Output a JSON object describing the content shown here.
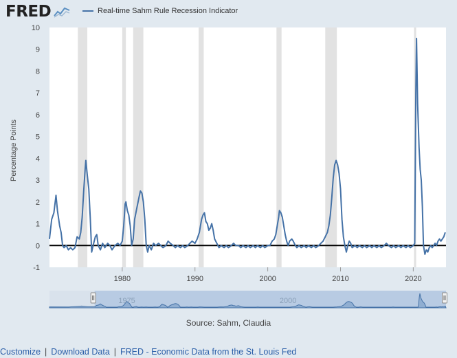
{
  "header": {
    "logo_text": "FRED",
    "logo_icon": "line-chart-icon"
  },
  "chart_data": {
    "type": "line",
    "title": "",
    "xlabel": "",
    "ylabel": "Percentage Points",
    "ylim": [
      -1,
      10
    ],
    "xlim": [
      1970.0,
      2024.5
    ],
    "yticks": [
      -1,
      0,
      1,
      2,
      3,
      4,
      5,
      6,
      7,
      8,
      9,
      10
    ],
    "xticks": [
      1980,
      1990,
      2000,
      2010,
      2020
    ],
    "grid": false,
    "legend": "top-left",
    "zero_line": true,
    "series": [
      {
        "name": "Real-time Sahm Rule Recession Indicator",
        "color": "#4572a7",
        "points": [
          [
            1970.0,
            0.3
          ],
          [
            1970.3,
            1.2
          ],
          [
            1970.6,
            1.5
          ],
          [
            1970.9,
            2.3
          ],
          [
            1971.1,
            1.6
          ],
          [
            1971.4,
            0.9
          ],
          [
            1971.6,
            0.6
          ],
          [
            1971.8,
            0.0
          ],
          [
            1972.0,
            -0.1
          ],
          [
            1972.3,
            0.0
          ],
          [
            1972.6,
            -0.2
          ],
          [
            1972.9,
            -0.1
          ],
          [
            1973.2,
            -0.2
          ],
          [
            1973.5,
            -0.1
          ],
          [
            1973.8,
            0.4
          ],
          [
            1974.1,
            0.3
          ],
          [
            1974.3,
            0.6
          ],
          [
            1974.5,
            1.3
          ],
          [
            1974.7,
            2.5
          ],
          [
            1974.9,
            3.5
          ],
          [
            1975.0,
            3.9
          ],
          [
            1975.2,
            3.2
          ],
          [
            1975.4,
            2.6
          ],
          [
            1975.6,
            1.3
          ],
          [
            1975.8,
            -0.3
          ],
          [
            1976.0,
            0.0
          ],
          [
            1976.3,
            0.4
          ],
          [
            1976.5,
            0.5
          ],
          [
            1976.7,
            0.0
          ],
          [
            1977.0,
            -0.2
          ],
          [
            1977.3,
            0.1
          ],
          [
            1977.6,
            -0.1
          ],
          [
            1978.0,
            0.1
          ],
          [
            1978.3,
            0.0
          ],
          [
            1978.6,
            -0.2
          ],
          [
            1979.0,
            0.0
          ],
          [
            1979.4,
            0.1
          ],
          [
            1979.7,
            0.0
          ],
          [
            1980.0,
            0.2
          ],
          [
            1980.2,
            0.9
          ],
          [
            1980.4,
            1.9
          ],
          [
            1980.5,
            2.0
          ],
          [
            1980.7,
            1.6
          ],
          [
            1980.9,
            1.4
          ],
          [
            1981.1,
            0.9
          ],
          [
            1981.3,
            0.0
          ],
          [
            1981.5,
            0.3
          ],
          [
            1981.7,
            1.2
          ],
          [
            1982.0,
            1.7
          ],
          [
            1982.3,
            2.2
          ],
          [
            1982.5,
            2.5
          ],
          [
            1982.7,
            2.4
          ],
          [
            1982.9,
            2.0
          ],
          [
            1983.1,
            1.2
          ],
          [
            1983.3,
            0.0
          ],
          [
            1983.5,
            -0.3
          ],
          [
            1983.7,
            0.0
          ],
          [
            1984.0,
            -0.2
          ],
          [
            1984.3,
            0.1
          ],
          [
            1984.6,
            0.0
          ],
          [
            1985.0,
            0.1
          ],
          [
            1985.3,
            0.0
          ],
          [
            1985.6,
            -0.1
          ],
          [
            1986.0,
            0.0
          ],
          [
            1986.3,
            0.2
          ],
          [
            1986.6,
            0.1
          ],
          [
            1987.0,
            0.0
          ],
          [
            1987.3,
            -0.1
          ],
          [
            1987.6,
            0.0
          ],
          [
            1988.0,
            -0.1
          ],
          [
            1988.3,
            0.0
          ],
          [
            1988.6,
            -0.1
          ],
          [
            1989.0,
            0.0
          ],
          [
            1989.3,
            0.1
          ],
          [
            1989.6,
            0.2
          ],
          [
            1990.0,
            0.1
          ],
          [
            1990.3,
            0.3
          ],
          [
            1990.6,
            0.6
          ],
          [
            1990.9,
            1.2
          ],
          [
            1991.1,
            1.4
          ],
          [
            1991.3,
            1.5
          ],
          [
            1991.5,
            1.1
          ],
          [
            1991.7,
            1.0
          ],
          [
            1991.9,
            0.7
          ],
          [
            1992.1,
            0.8
          ],
          [
            1992.3,
            1.0
          ],
          [
            1992.5,
            0.7
          ],
          [
            1992.7,
            0.3
          ],
          [
            1993.0,
            0.1
          ],
          [
            1993.3,
            -0.1
          ],
          [
            1993.6,
            0.0
          ],
          [
            1994.0,
            -0.1
          ],
          [
            1994.3,
            0.0
          ],
          [
            1994.6,
            -0.1
          ],
          [
            1995.0,
            0.0
          ],
          [
            1995.3,
            0.1
          ],
          [
            1995.6,
            0.0
          ],
          [
            1996.0,
            0.0
          ],
          [
            1996.3,
            -0.1
          ],
          [
            1996.6,
            0.0
          ],
          [
            1997.0,
            -0.1
          ],
          [
            1997.3,
            0.0
          ],
          [
            1997.6,
            -0.1
          ],
          [
            1998.0,
            0.0
          ],
          [
            1998.3,
            -0.1
          ],
          [
            1998.6,
            0.0
          ],
          [
            1999.0,
            -0.1
          ],
          [
            1999.3,
            0.0
          ],
          [
            1999.6,
            -0.1
          ],
          [
            2000.0,
            0.0
          ],
          [
            2000.3,
            0.0
          ],
          [
            2000.6,
            0.2
          ],
          [
            2000.9,
            0.3
          ],
          [
            2001.1,
            0.5
          ],
          [
            2001.3,
            0.9
          ],
          [
            2001.5,
            1.3
          ],
          [
            2001.6,
            1.6
          ],
          [
            2001.8,
            1.5
          ],
          [
            2002.0,
            1.3
          ],
          [
            2002.2,
            0.9
          ],
          [
            2002.4,
            0.5
          ],
          [
            2002.6,
            0.2
          ],
          [
            2002.8,
            0.0
          ],
          [
            2003.0,
            0.2
          ],
          [
            2003.3,
            0.3
          ],
          [
            2003.5,
            0.2
          ],
          [
            2003.8,
            0.0
          ],
          [
            2004.0,
            -0.1
          ],
          [
            2004.3,
            0.0
          ],
          [
            2004.6,
            -0.1
          ],
          [
            2005.0,
            0.0
          ],
          [
            2005.3,
            -0.1
          ],
          [
            2005.6,
            0.0
          ],
          [
            2006.0,
            -0.1
          ],
          [
            2006.3,
            0.0
          ],
          [
            2006.6,
            -0.1
          ],
          [
            2007.0,
            0.0
          ],
          [
            2007.3,
            0.1
          ],
          [
            2007.6,
            0.2
          ],
          [
            2007.9,
            0.4
          ],
          [
            2008.2,
            0.6
          ],
          [
            2008.4,
            0.9
          ],
          [
            2008.6,
            1.4
          ],
          [
            2008.8,
            2.2
          ],
          [
            2009.0,
            3.1
          ],
          [
            2009.2,
            3.7
          ],
          [
            2009.4,
            3.9
          ],
          [
            2009.6,
            3.7
          ],
          [
            2009.8,
            3.3
          ],
          [
            2010.0,
            2.6
          ],
          [
            2010.2,
            1.2
          ],
          [
            2010.4,
            0.4
          ],
          [
            2010.6,
            0.0
          ],
          [
            2010.8,
            -0.3
          ],
          [
            2011.0,
            0.0
          ],
          [
            2011.2,
            0.2
          ],
          [
            2011.4,
            0.1
          ],
          [
            2011.6,
            -0.1
          ],
          [
            2012.0,
            0.0
          ],
          [
            2012.3,
            -0.1
          ],
          [
            2012.6,
            0.0
          ],
          [
            2013.0,
            -0.1
          ],
          [
            2013.3,
            0.0
          ],
          [
            2013.6,
            -0.1
          ],
          [
            2014.0,
            0.0
          ],
          [
            2014.3,
            -0.1
          ],
          [
            2014.6,
            0.0
          ],
          [
            2015.0,
            -0.1
          ],
          [
            2015.3,
            0.0
          ],
          [
            2015.6,
            -0.1
          ],
          [
            2016.0,
            0.0
          ],
          [
            2016.3,
            0.1
          ],
          [
            2016.6,
            0.0
          ],
          [
            2017.0,
            -0.1
          ],
          [
            2017.3,
            0.0
          ],
          [
            2017.6,
            -0.1
          ],
          [
            2018.0,
            0.0
          ],
          [
            2018.3,
            -0.1
          ],
          [
            2018.6,
            0.0
          ],
          [
            2019.0,
            -0.1
          ],
          [
            2019.3,
            0.0
          ],
          [
            2019.6,
            -0.1
          ],
          [
            2020.0,
            0.0
          ],
          [
            2020.2,
            0.1
          ],
          [
            2020.35,
            7.0
          ],
          [
            2020.45,
            9.5
          ],
          [
            2020.6,
            6.5
          ],
          [
            2020.8,
            4.5
          ],
          [
            2020.95,
            3.5
          ],
          [
            2021.1,
            3.0
          ],
          [
            2021.25,
            1.8
          ],
          [
            2021.4,
            0.0
          ],
          [
            2021.6,
            -0.4
          ],
          [
            2021.8,
            -0.2
          ],
          [
            2022.0,
            -0.3
          ],
          [
            2022.2,
            -0.1
          ],
          [
            2022.4,
            0.0
          ],
          [
            2022.6,
            -0.1
          ],
          [
            2022.8,
            0.0
          ],
          [
            2023.0,
            0.1
          ],
          [
            2023.2,
            0.0
          ],
          [
            2023.4,
            0.2
          ],
          [
            2023.6,
            0.3
          ],
          [
            2023.8,
            0.2
          ],
          [
            2024.0,
            0.3
          ],
          [
            2024.2,
            0.4
          ],
          [
            2024.4,
            0.6
          ]
        ]
      }
    ],
    "recessions": [
      [
        1973.9,
        1975.2
      ],
      [
        1980.0,
        1980.5
      ],
      [
        1981.5,
        1982.9
      ],
      [
        1990.5,
        1991.2
      ],
      [
        2001.2,
        2001.9
      ],
      [
        2007.9,
        2009.5
      ],
      [
        2020.1,
        2020.4
      ]
    ],
    "navigator": {
      "range": [
        1963.0,
        2024.5
      ],
      "selected": [
        1970.0,
        2024.5
      ],
      "labels": [
        {
          "x": 1975,
          "text": "1975"
        },
        {
          "x": 2000,
          "text": "2000"
        }
      ]
    },
    "source": "Source: Sahm, Claudia"
  },
  "colors": {
    "series": "#4572a7",
    "recession": "#e2e2e2",
    "plot_bg": "#ffffff",
    "page_bg": "#e1e9f0"
  },
  "footer": {
    "links": [
      {
        "label": "Customize"
      },
      {
        "label": "Download Data"
      },
      {
        "label": "FRED - Economic Data from the St. Louis Fed"
      }
    ],
    "separator": "|"
  }
}
